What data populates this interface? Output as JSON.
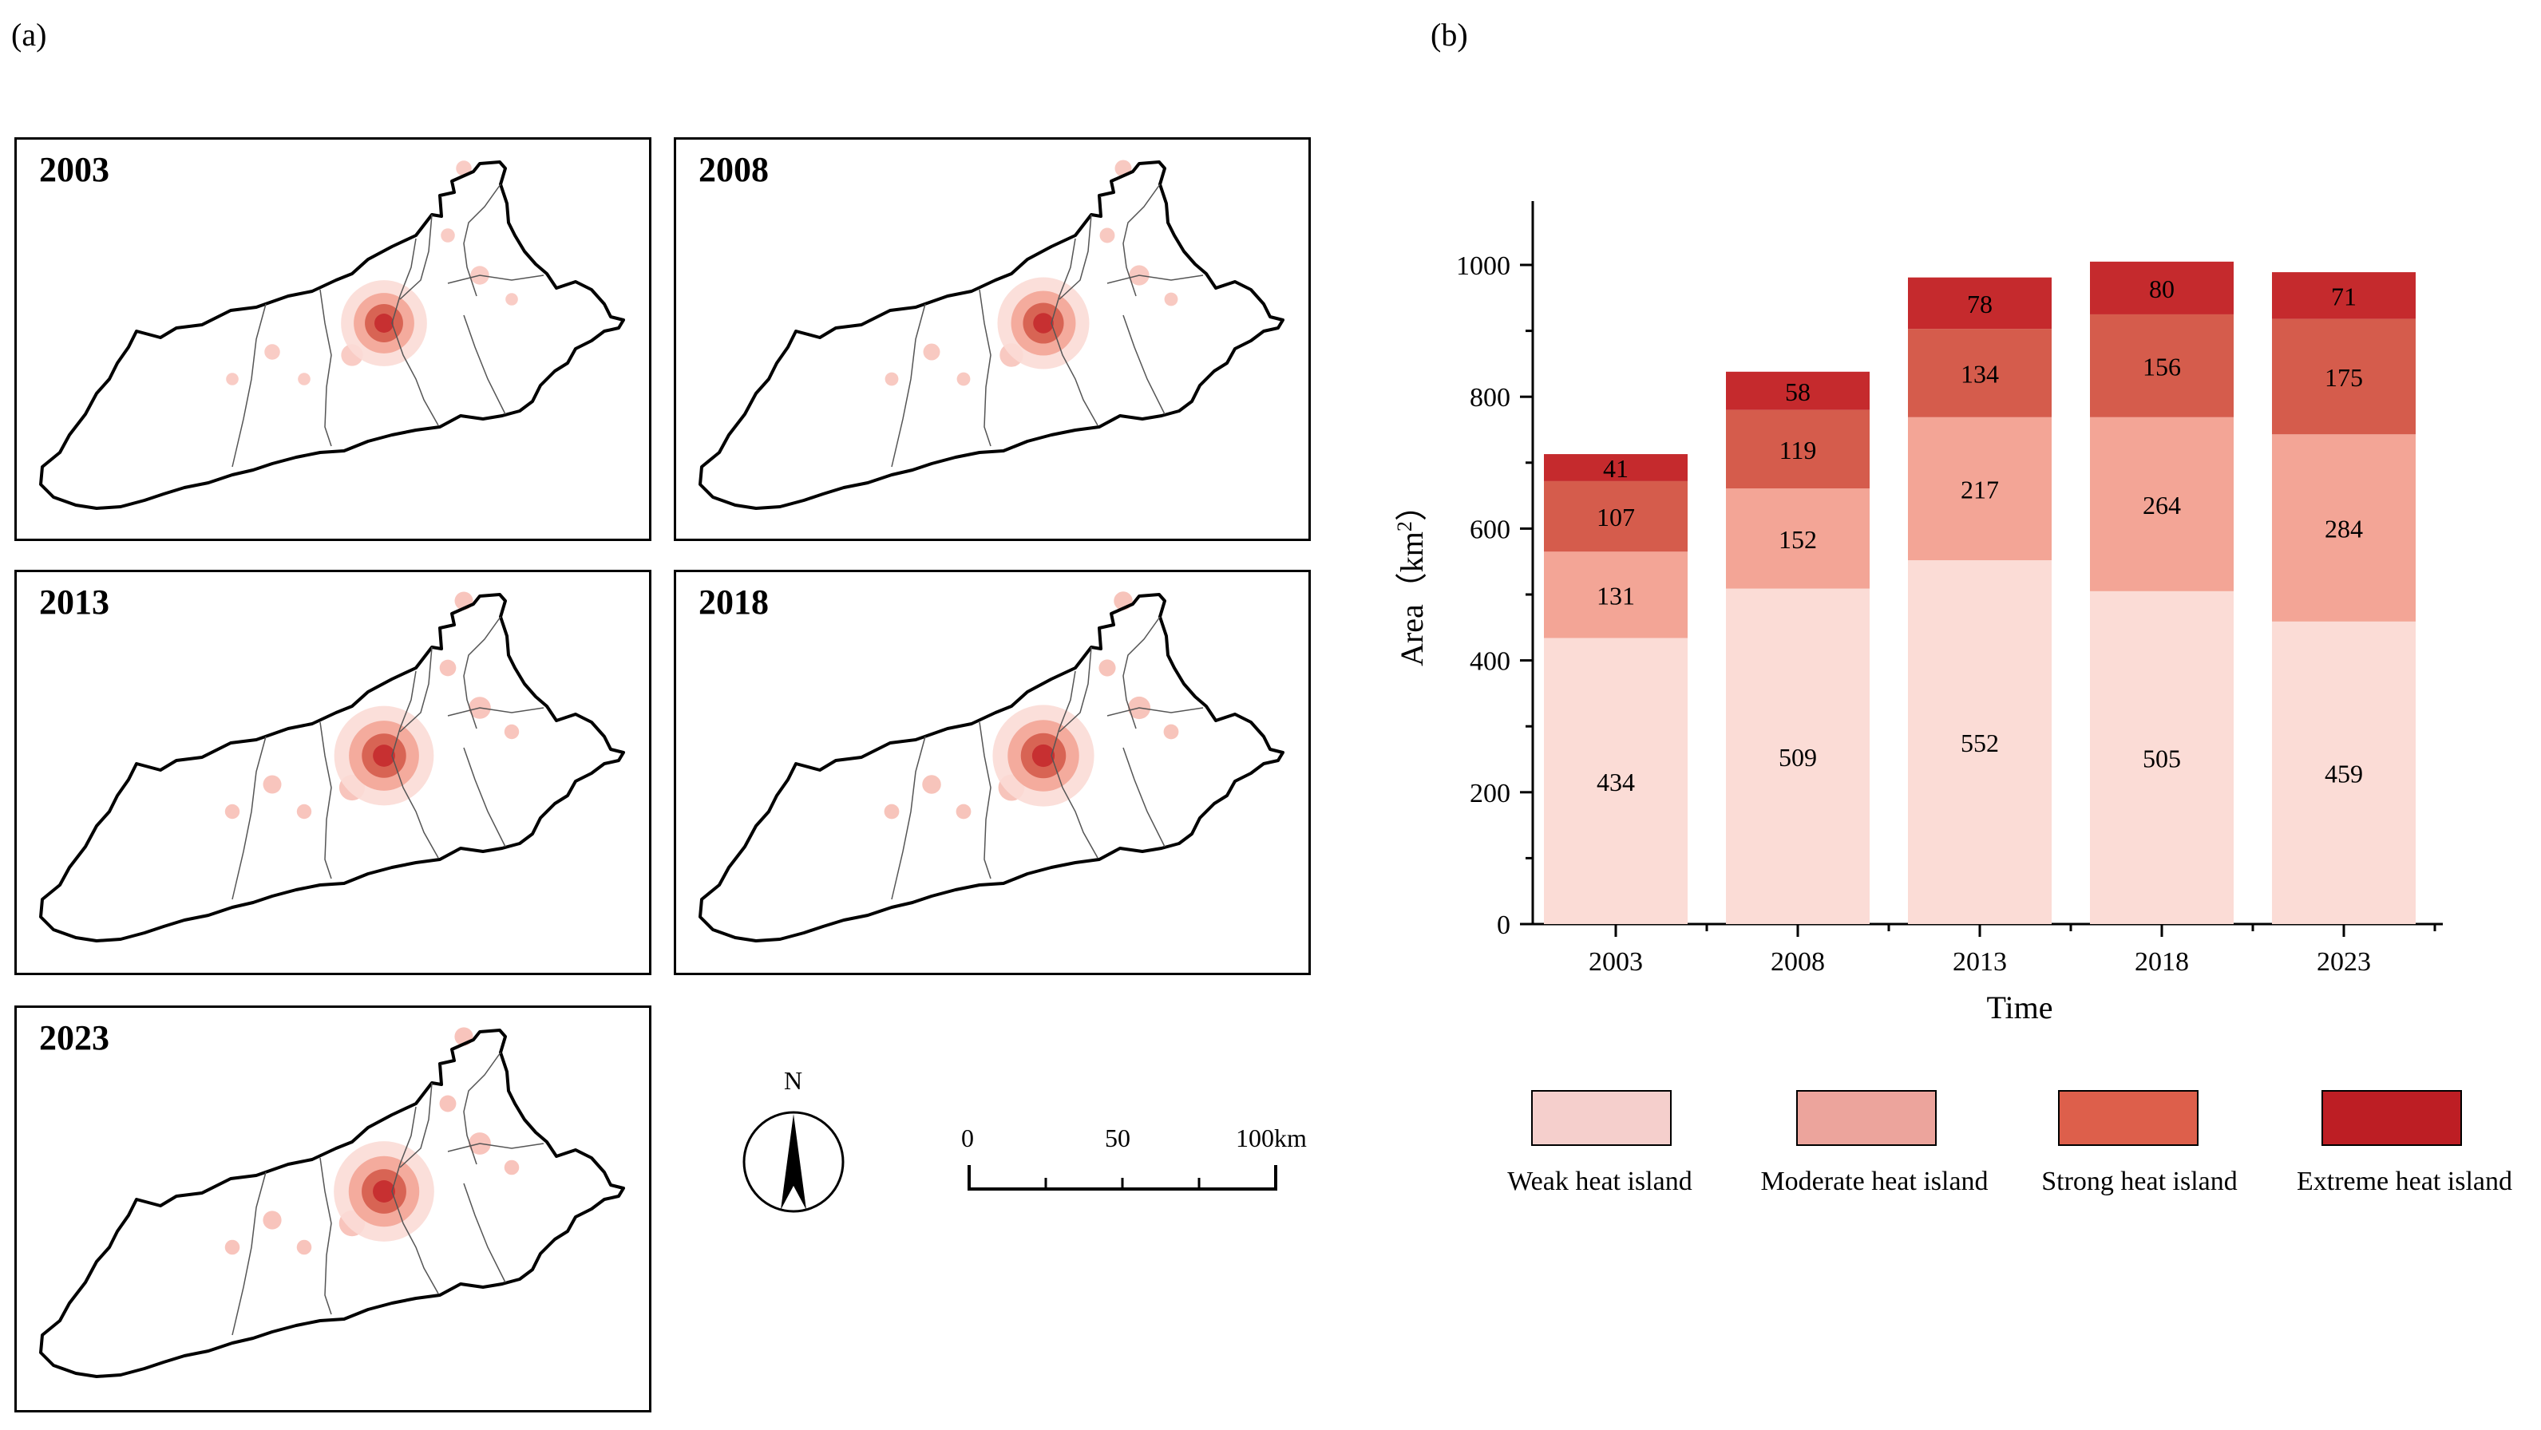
{
  "panel_a_label": "(a)",
  "panel_b_label": "(b)",
  "maps": [
    {
      "year": "2003",
      "intensity": 0.55
    },
    {
      "year": "2008",
      "intensity": 0.7
    },
    {
      "year": "2013",
      "intensity": 0.9
    },
    {
      "year": "2018",
      "intensity": 0.95
    },
    {
      "year": "2023",
      "intensity": 0.92
    }
  ],
  "north_arrow": {
    "label": "N"
  },
  "scale_bar": {
    "labels": [
      "0",
      "50",
      "100km"
    ]
  },
  "chart_data": {
    "type": "bar",
    "stacked": true,
    "title": "",
    "xlabel": "Time",
    "ylabel": "Area（km²）",
    "ylabel_main": "Area（km",
    "ylabel_sup": "2",
    "ylabel_close": "）",
    "ylim": [
      0,
      1100
    ],
    "yticks": [
      0,
      200,
      400,
      600,
      800,
      1000
    ],
    "categories": [
      "2003",
      "2008",
      "2013",
      "2018",
      "2023"
    ],
    "series": [
      {
        "name": "Weak heat island",
        "values": [
          434,
          509,
          552,
          505,
          459
        ],
        "color": "#fbdcd6",
        "legend_color": "#f5cfcc"
      },
      {
        "name": "Moderate heat island",
        "values": [
          131,
          152,
          217,
          264,
          284
        ],
        "color": "#f3a596",
        "legend_color": "#eca49c"
      },
      {
        "name": "Strong heat island",
        "values": [
          107,
          119,
          134,
          156,
          175
        ],
        "color": "#d55c4c",
        "legend_color": "#dd5f4b"
      },
      {
        "name": "Extreme heat island",
        "values": [
          41,
          58,
          78,
          80,
          71
        ],
        "color": "#c52a2d",
        "legend_color": "#bd1e24"
      }
    ]
  }
}
